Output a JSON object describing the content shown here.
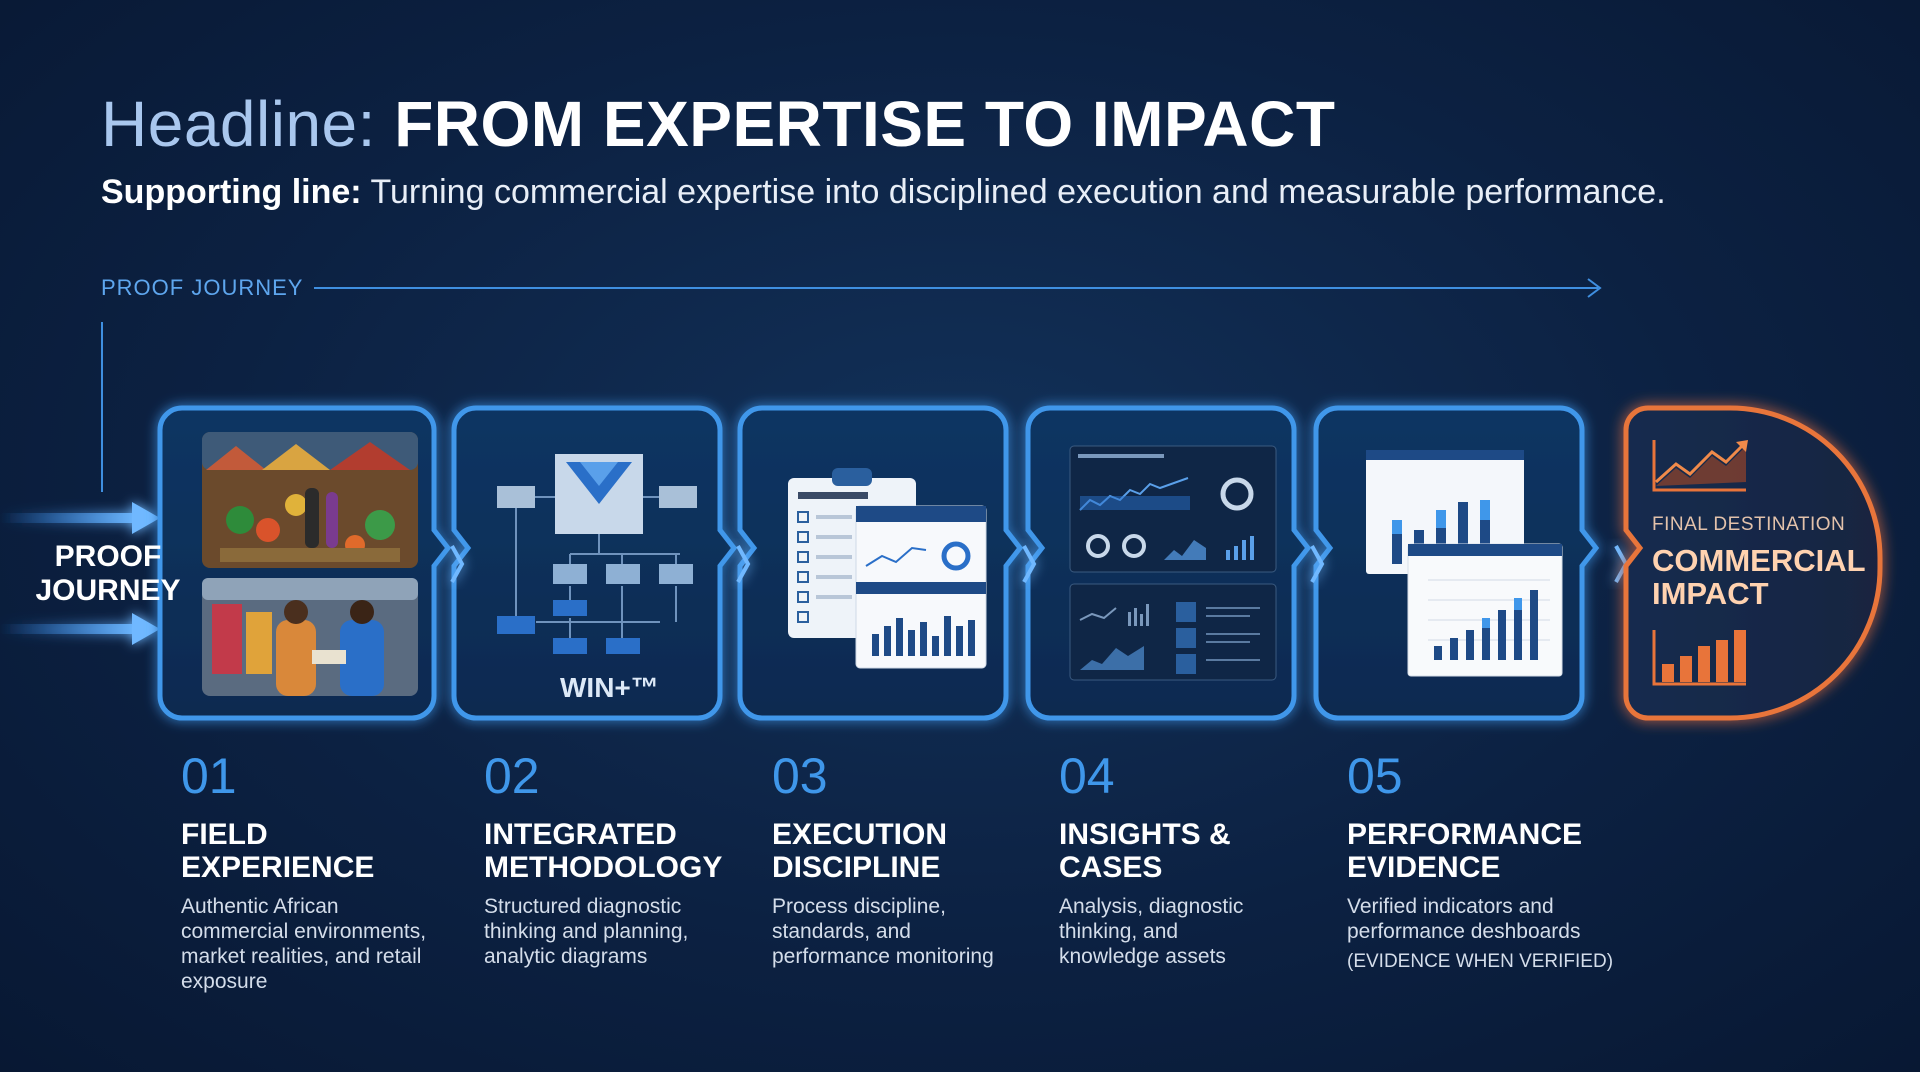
{
  "header": {
    "headline_prefix": "Headline:",
    "headline_main": "FROM EXPERTISE TO IMPACT",
    "supporting_prefix": "Supporting line:",
    "supporting_text": " Turning commercial expertise into disciplined execution and measurable performance."
  },
  "journey": {
    "label": "PROOF JOURNEY",
    "side_label_line1": "PROOF",
    "side_label_line2": "JOURNEY"
  },
  "stages": [
    {
      "number": "01",
      "title_line1": "FIELD",
      "title_line2": "EXPERIENCE",
      "description": "Authentic African commercial environments, market realities, and retail exposure",
      "icon": "market-photos-icon"
    },
    {
      "number": "02",
      "title_line1": "INTEGRATED",
      "title_line2": "METHODOLOGY",
      "description": "Structured diagnostic thinking and planning, analytic diagrams",
      "icon": "flow-diagram-icon",
      "badge": "WIN+™"
    },
    {
      "number": "03",
      "title_line1": "EXECUTION",
      "title_line2": "DISCIPLINE",
      "description": "Process discipline, standards, and performance monitoring",
      "icon": "checklist-report-icon"
    },
    {
      "number": "04",
      "title_line1": "INSIGHTS &",
      "title_line2": "CASES",
      "description": "Analysis, diagnostic thinking, and knowledge assets",
      "icon": "analytics-dashboard-icon"
    },
    {
      "number": "05",
      "title_line1": "PERFORMANCE",
      "title_line2": "EVIDENCE",
      "description": "Verified indicators and performance deshboards",
      "note": "(EVIDENCE WHEN VERIFIED)",
      "icon": "performance-dashboard-icon"
    }
  ],
  "destination": {
    "subtitle": "FINAL DESTINATION",
    "title_line1": "COMMERCIAL",
    "title_line2": "IMPACT",
    "icon": "trend-up-chart-icon"
  },
  "colors": {
    "background": "#0c2142",
    "stage_glow": "#3f97ea",
    "destination_glow": "#e8743a",
    "number_blue": "#3f97ea"
  }
}
